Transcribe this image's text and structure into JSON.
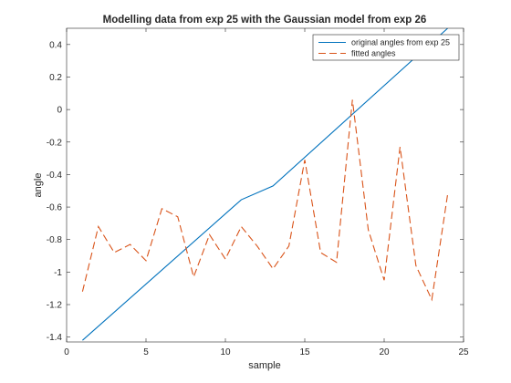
{
  "chart_data": {
    "type": "line",
    "title": "Modelling data from exp 25 with the Gaussian model from exp 26",
    "xlabel": "sample",
    "ylabel": "angle",
    "xlim": [
      0,
      25
    ],
    "ylim": [
      -1.43,
      0.5
    ],
    "xticks": [
      0,
      5,
      10,
      15,
      20,
      25
    ],
    "xtick_labels": [
      "0",
      "5",
      "10",
      "15",
      "20",
      "25"
    ],
    "yticks": [
      -1.4,
      -1.2,
      -1,
      -0.8,
      -0.6,
      -0.4,
      -0.2,
      0,
      0.2,
      0.4
    ],
    "ytick_labels": [
      "-1.4",
      "-1.2",
      "-1",
      "-0.8",
      "-0.6",
      "-0.4",
      "-0.2",
      "0",
      "0.2",
      "0.4"
    ],
    "grid": false,
    "legend_position": "top-right",
    "series": [
      {
        "name": "original angles from exp 25",
        "color": "#0072BD",
        "style": "solid",
        "x": [
          1,
          11,
          13,
          24
        ],
        "y": [
          -1.42,
          -0.555,
          -0.47,
          0.5
        ]
      },
      {
        "name": "fitted angles",
        "color": "#D95319",
        "style": "dashed",
        "x": [
          1,
          2,
          3,
          4,
          5,
          6,
          7,
          8,
          9,
          10,
          11,
          12,
          13,
          14,
          15,
          16,
          17,
          18,
          19,
          20,
          21,
          22,
          23,
          24
        ],
        "y": [
          -1.12,
          -0.72,
          -0.88,
          -0.83,
          -0.93,
          -0.61,
          -0.66,
          -1.03,
          -0.77,
          -0.92,
          -0.72,
          -0.84,
          -0.98,
          -0.84,
          -0.31,
          -0.88,
          -0.94,
          0.06,
          -0.74,
          -1.05,
          -0.23,
          -0.96,
          -1.17,
          -0.52
        ]
      }
    ]
  }
}
